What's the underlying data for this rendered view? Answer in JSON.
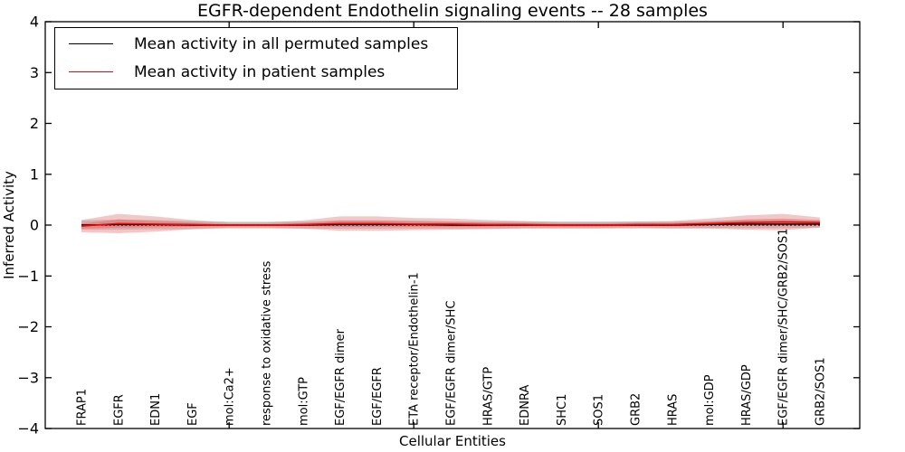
{
  "chart_data": {
    "type": "line",
    "title": "EGFR-dependent Endothelin signaling events -- 28 samples",
    "xlabel": "Cellular Entities",
    "ylabel": "Inferred Activity",
    "ylim": [
      -4,
      4
    ],
    "yticks": [
      4,
      3,
      2,
      1,
      0,
      -1,
      -2,
      -3,
      -4
    ],
    "ytick_labels": [
      "4",
      "3",
      "2",
      "1",
      "0",
      "−1",
      "−2",
      "−3",
      "−4"
    ],
    "xtick_values": [
      5,
      10,
      15,
      20
    ],
    "grid": false,
    "legend_position": "upper left",
    "categories": [
      "FRAP1",
      "EGFR",
      "EDN1",
      "EGF",
      "mol:Ca2+",
      "response to oxidative stress",
      "mol:GTP",
      "EGF/EGFR dimer",
      "EGF/EGFR",
      "ETA receptor/Endothelin-1",
      "EGF/EGFR dimer/SHC",
      "HRAS/GTP",
      "EDNRA",
      "SHC1",
      "SOS1",
      "GRB2",
      "HRAS",
      "mol:GDP",
      "HRAS/GDP",
      "EGF/EGFR dimer/SHC/GRB2/SOS1",
      "GRB2/SOS1"
    ],
    "series": [
      {
        "name": "Mean activity in all permuted samples",
        "color": "#000000",
        "style": "solid",
        "values": [
          0.0,
          0.01,
          0.01,
          0.0,
          0.0,
          0.0,
          0.0,
          0.01,
          0.01,
          0.01,
          0.0,
          0.0,
          0.0,
          0.0,
          0.0,
          0.0,
          0.0,
          0.01,
          0.02,
          0.02,
          0.02
        ]
      },
      {
        "name": "Mean activity in patient samples",
        "color": "#ff0000",
        "style": "solid",
        "values": [
          -0.02,
          0.03,
          0.02,
          0.01,
          0.0,
          0.0,
          0.01,
          0.03,
          0.03,
          0.02,
          0.02,
          0.01,
          0.01,
          0.0,
          0.0,
          0.01,
          0.01,
          0.03,
          0.05,
          0.06,
          0.05
        ]
      }
    ],
    "zero_line": {
      "y": 0,
      "style": "dotted",
      "color": "#000000"
    },
    "bands": [
      {
        "name": "permuted-std",
        "center_series": 0,
        "color": "#999999",
        "opacity": 0.4,
        "half_widths": [
          0.09,
          0.1,
          0.09,
          0.08,
          0.07,
          0.07,
          0.07,
          0.08,
          0.08,
          0.08,
          0.07,
          0.07,
          0.07,
          0.07,
          0.07,
          0.07,
          0.07,
          0.07,
          0.08,
          0.08,
          0.07
        ]
      },
      {
        "name": "patient-std",
        "center_series": 1,
        "color": "#e05c5c",
        "opacity": 0.35,
        "half_widths": [
          0.12,
          0.19,
          0.15,
          0.09,
          0.05,
          0.05,
          0.08,
          0.14,
          0.14,
          0.12,
          0.11,
          0.09,
          0.07,
          0.06,
          0.06,
          0.06,
          0.07,
          0.1,
          0.14,
          0.16,
          0.1
        ]
      },
      {
        "name": "patient-sem",
        "center_series": 1,
        "color": "#e05c5c",
        "opacity": 0.4,
        "half_widths": [
          0.05,
          0.08,
          0.06,
          0.04,
          0.02,
          0.02,
          0.03,
          0.06,
          0.06,
          0.05,
          0.05,
          0.04,
          0.03,
          0.03,
          0.03,
          0.03,
          0.03,
          0.04,
          0.06,
          0.07,
          0.05
        ]
      }
    ]
  }
}
